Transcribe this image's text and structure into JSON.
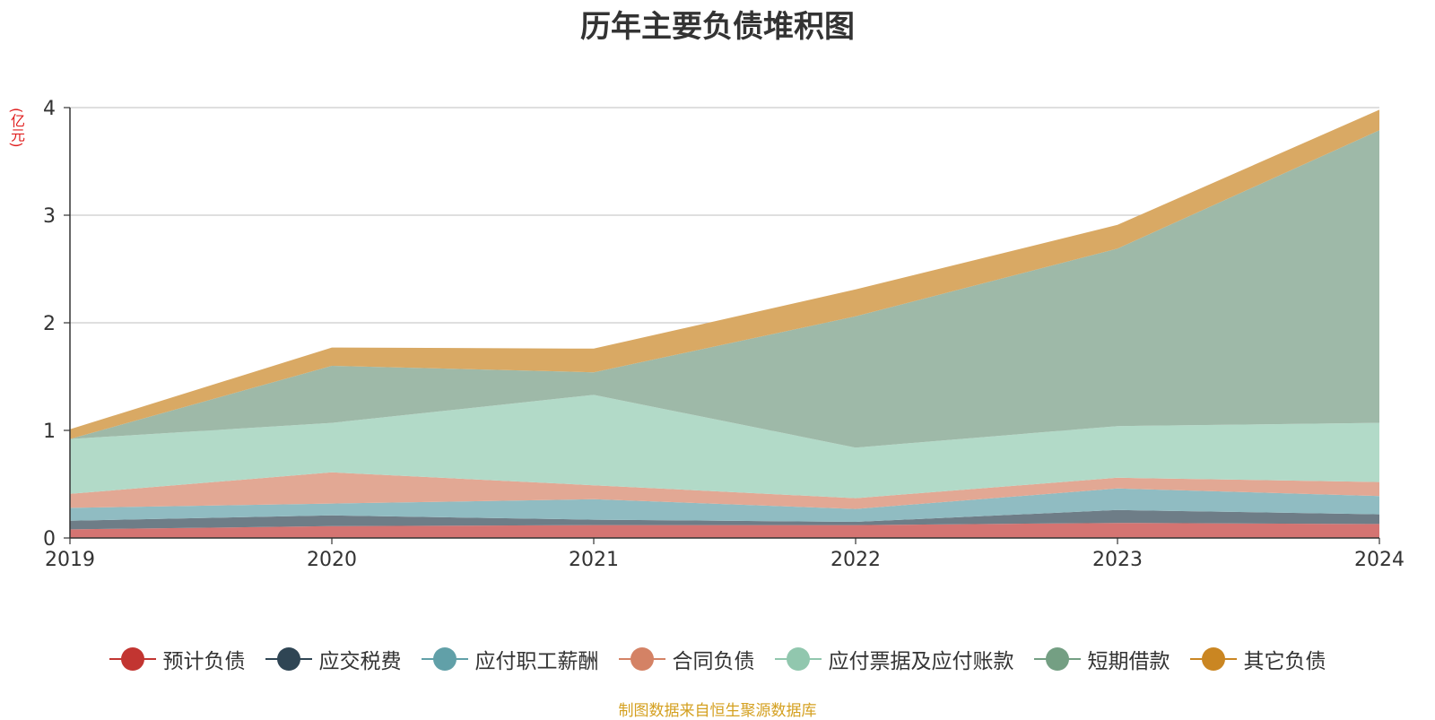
{
  "chart_data": {
    "type": "area",
    "stacked": true,
    "title": "历年主要负债堆积图",
    "ylabel": "(亿元)",
    "xlabel": "",
    "x": [
      "2019",
      "2020",
      "2021",
      "2022",
      "2023",
      "2024"
    ],
    "ylim": [
      0,
      4
    ],
    "yticks": [
      0,
      1,
      2,
      3,
      4
    ],
    "grid": true,
    "legend_position": "bottom",
    "series": [
      {
        "name": "预计负债",
        "color": "#c23531",
        "fill": "#d47472",
        "values": [
          0.08,
          0.11,
          0.12,
          0.12,
          0.14,
          0.13
        ]
      },
      {
        "name": "应交税费",
        "color": "#2f4554",
        "fill": "#6e7d87",
        "values": [
          0.08,
          0.1,
          0.05,
          0.03,
          0.12,
          0.09
        ]
      },
      {
        "name": "应付职工薪酬",
        "color": "#61a0a8",
        "fill": "#90bcc2",
        "values": [
          0.12,
          0.11,
          0.19,
          0.12,
          0.2,
          0.17
        ]
      },
      {
        "name": "合同负债",
        "color": "#d48265",
        "fill": "#e2a894",
        "values": [
          0.13,
          0.29,
          0.13,
          0.1,
          0.1,
          0.13
        ]
      },
      {
        "name": "应付票据及应付账款",
        "color": "#91c7ae",
        "fill": "#b2dac8",
        "values": [
          0.51,
          0.46,
          0.84,
          0.47,
          0.48,
          0.55
        ]
      },
      {
        "name": "短期借款",
        "color": "#749f83",
        "fill": "#9eb9a8",
        "values": [
          0.0,
          0.53,
          0.21,
          1.22,
          1.65,
          2.72
        ]
      },
      {
        "name": "其它负债",
        "color": "#ca8622",
        "fill": "#d9a964",
        "values": [
          0.09,
          0.17,
          0.22,
          0.25,
          0.22,
          0.19
        ]
      }
    ]
  },
  "source_note": "制图数据来自恒生聚源数据库"
}
